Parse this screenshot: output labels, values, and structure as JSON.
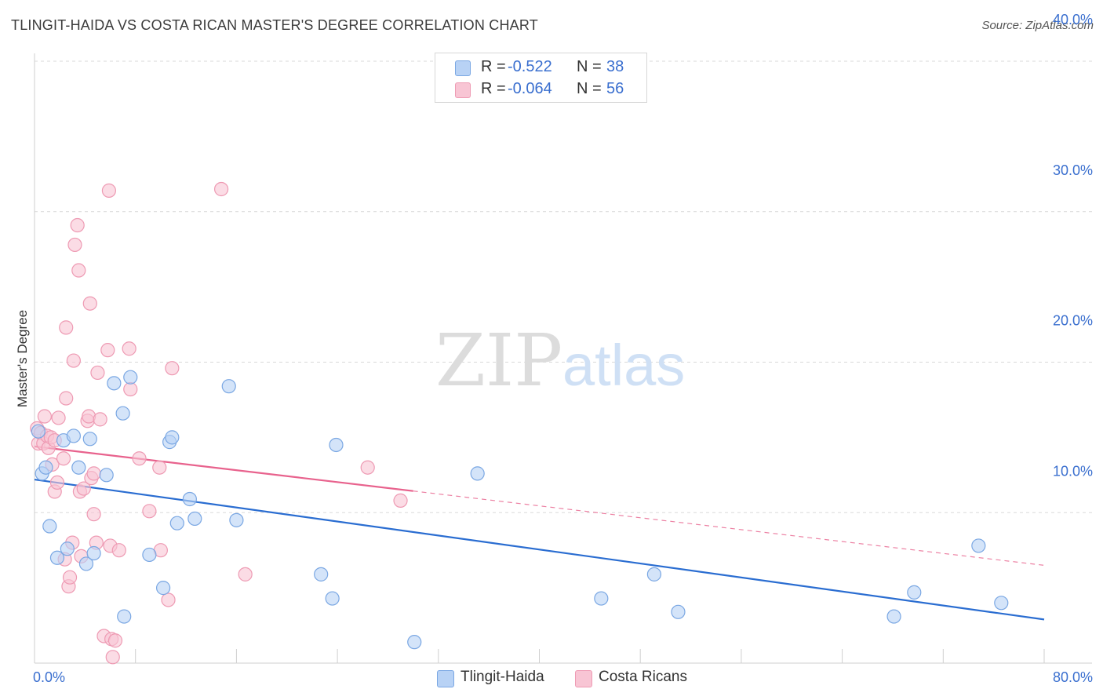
{
  "title": "TLINGIT-HAIDA VS COSTA RICAN MASTER'S DEGREE CORRELATION CHART",
  "source": "Source: ZipAtlas.com",
  "watermark": {
    "zip": "ZIP",
    "atlas": "atlas"
  },
  "colors": {
    "blue_fill": "#b8d2f5",
    "blue_stroke": "#7aa7e3",
    "blue_line": "#2a6dd1",
    "pink_fill": "#f8c5d4",
    "pink_stroke": "#ee9ab3",
    "pink_line": "#e8628d",
    "axis_label": "#3a6fcf",
    "grid": "#d9d9d9"
  },
  "legend": {
    "rows": [
      {
        "r_label": "R =",
        "r_value": "-0.522",
        "n_label": "N =",
        "n_value": "38"
      },
      {
        "r_label": "R =",
        "r_value": "-0.064",
        "n_label": "N =",
        "n_value": "56"
      }
    ]
  },
  "bottom_legend": {
    "series1": "Tlingit-Haida",
    "series2": "Costa Ricans"
  },
  "chart_data": {
    "type": "scatter",
    "title": "TLINGIT-HAIDA VS COSTA RICAN MASTER'S DEGREE CORRELATION CHART",
    "xlabel": "",
    "ylabel": "Master's Degree",
    "xlim": [
      0,
      80
    ],
    "ylim": [
      0,
      40
    ],
    "x_tick_labels": [
      "0.0%",
      "80.0%"
    ],
    "y_ticks": [
      10,
      20,
      30,
      40
    ],
    "y_tick_labels": [
      "10.0%",
      "20.0%",
      "30.0%",
      "40.0%"
    ],
    "grid": true,
    "series": [
      {
        "name": "Tlingit-Haida",
        "color": "blue",
        "trend": {
          "x0": 0,
          "y0": 12.2,
          "x1": 80,
          "y1": 2.9,
          "dashed_from": null
        },
        "points": [
          [
            0.3,
            15.4
          ],
          [
            0.6,
            12.6
          ],
          [
            0.9,
            13.0
          ],
          [
            1.2,
            9.1
          ],
          [
            1.8,
            7.0
          ],
          [
            2.3,
            14.8
          ],
          [
            2.6,
            7.6
          ],
          [
            3.1,
            15.1
          ],
          [
            3.5,
            13.0
          ],
          [
            4.1,
            6.6
          ],
          [
            4.4,
            14.9
          ],
          [
            4.7,
            7.3
          ],
          [
            5.7,
            12.5
          ],
          [
            6.3,
            18.6
          ],
          [
            7.0,
            16.6
          ],
          [
            7.1,
            3.1
          ],
          [
            7.6,
            19.0
          ],
          [
            9.1,
            7.2
          ],
          [
            10.2,
            5.0
          ],
          [
            10.7,
            14.7
          ],
          [
            10.9,
            15.0
          ],
          [
            11.3,
            9.3
          ],
          [
            12.3,
            10.9
          ],
          [
            12.7,
            9.6
          ],
          [
            15.4,
            18.4
          ],
          [
            16.0,
            9.5
          ],
          [
            22.7,
            5.9
          ],
          [
            23.6,
            4.3
          ],
          [
            23.9,
            14.5
          ],
          [
            30.1,
            1.4
          ],
          [
            35.1,
            12.6
          ],
          [
            44.9,
            4.3
          ],
          [
            49.1,
            5.9
          ],
          [
            51.0,
            3.4
          ],
          [
            68.1,
            3.1
          ],
          [
            69.7,
            4.7
          ],
          [
            74.8,
            7.8
          ],
          [
            76.6,
            4.0
          ]
        ]
      },
      {
        "name": "Costa Ricans",
        "color": "pink",
        "trend": {
          "x0": 0,
          "y0": 14.4,
          "x1": 80,
          "y1": 6.5,
          "dashed_from": 30
        },
        "points": [
          [
            0.2,
            15.6
          ],
          [
            0.3,
            14.6
          ],
          [
            0.5,
            15.3
          ],
          [
            0.7,
            14.6
          ],
          [
            0.8,
            16.4
          ],
          [
            1.0,
            15.1
          ],
          [
            1.1,
            14.3
          ],
          [
            1.3,
            15.0
          ],
          [
            1.4,
            13.2
          ],
          [
            1.6,
            14.8
          ],
          [
            1.6,
            11.4
          ],
          [
            1.8,
            12.0
          ],
          [
            1.9,
            16.3
          ],
          [
            2.3,
            13.6
          ],
          [
            2.4,
            6.9
          ],
          [
            2.5,
            17.6
          ],
          [
            2.5,
            22.3
          ],
          [
            2.7,
            5.1
          ],
          [
            2.8,
            5.7
          ],
          [
            3.0,
            8.0
          ],
          [
            3.1,
            20.1
          ],
          [
            3.2,
            27.8
          ],
          [
            3.4,
            29.1
          ],
          [
            3.5,
            26.1
          ],
          [
            3.6,
            11.4
          ],
          [
            3.7,
            7.1
          ],
          [
            3.9,
            11.6
          ],
          [
            4.2,
            16.1
          ],
          [
            4.3,
            16.4
          ],
          [
            4.4,
            23.9
          ],
          [
            4.5,
            12.3
          ],
          [
            4.7,
            12.6
          ],
          [
            4.7,
            9.9
          ],
          [
            4.9,
            8.0
          ],
          [
            5.0,
            19.3
          ],
          [
            5.2,
            16.2
          ],
          [
            5.5,
            1.8
          ],
          [
            5.8,
            20.8
          ],
          [
            5.9,
            31.4
          ],
          [
            6.0,
            7.8
          ],
          [
            6.1,
            1.6
          ],
          [
            6.2,
            0.4
          ],
          [
            6.4,
            1.5
          ],
          [
            6.7,
            7.5
          ],
          [
            7.5,
            20.9
          ],
          [
            7.6,
            18.2
          ],
          [
            8.3,
            13.6
          ],
          [
            9.1,
            10.1
          ],
          [
            9.9,
            13.0
          ],
          [
            10.0,
            7.5
          ],
          [
            10.6,
            4.2
          ],
          [
            10.9,
            19.6
          ],
          [
            14.8,
            31.5
          ],
          [
            16.7,
            5.9
          ],
          [
            26.4,
            13.0
          ],
          [
            29.0,
            10.8
          ]
        ]
      }
    ]
  }
}
